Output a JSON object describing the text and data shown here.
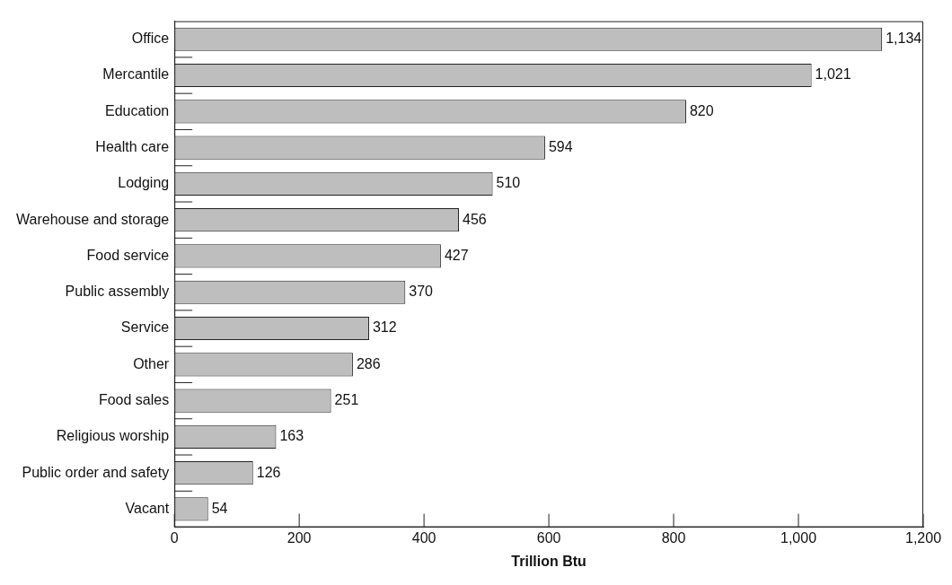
{
  "chart_data": {
    "type": "bar",
    "orientation": "horizontal",
    "xlabel": "Trillion Btu",
    "categories": [
      "Office",
      "Mercantile",
      "Education",
      "Health care",
      "Lodging",
      "Warehouse and storage",
      "Food service",
      "Public assembly",
      "Service",
      "Other",
      "Food sales",
      "Religious worship",
      "Public order and safety",
      "Vacant"
    ],
    "values": [
      1134,
      1021,
      820,
      594,
      510,
      456,
      427,
      370,
      312,
      286,
      251,
      163,
      126,
      54
    ],
    "value_labels": [
      "1,134",
      "1,021",
      "820",
      "594",
      "510",
      "456",
      "427",
      "370",
      "312",
      "286",
      "251",
      "163",
      "126",
      "54"
    ],
    "color": "#bebebe",
    "xlim": [
      0,
      1200
    ],
    "xticks": [
      0,
      200,
      400,
      600,
      800,
      {
        "value": 1000,
        "label": "1,000"
      },
      {
        "value": 1200,
        "label": "1,200"
      }
    ],
    "grid": false,
    "legend": false
  }
}
